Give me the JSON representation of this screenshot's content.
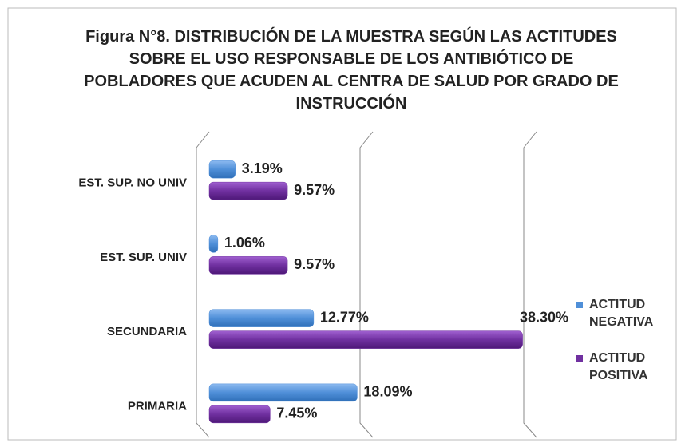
{
  "chart_data": {
    "type": "bar",
    "orientation": "horizontal",
    "title": "Figura N°8. DISTRIBUCIÓN DE LA MUESTRA SEGÚN LAS ACTITUDES SOBRE EL USO RESPONSABLE DE LOS ANTIBIÓTICO DE POBLADORES QUE ACUDEN AL CENTRA DE SALUD POR GRADO DE INSTRUCCIÓN",
    "categories": [
      "EST. SUP. NO UNIV",
      "EST. SUP. UNIV",
      "SECUNDARIA",
      "PRIMARIA"
    ],
    "series": [
      {
        "name": "ACTITUD NEGATIVA",
        "color": "#4f8fd8",
        "values": [
          3.19,
          1.06,
          12.77,
          18.09
        ],
        "value_labels": [
          "3.19%",
          "1.06%",
          "12.77%",
          "18.09%"
        ]
      },
      {
        "name": "ACTITUD POSITIVA",
        "color": "#7030a0",
        "values": [
          9.57,
          9.57,
          38.3,
          7.45
        ],
        "value_labels": [
          "9.57%",
          "9.57%",
          "38.30%",
          "7.45%"
        ]
      }
    ],
    "xlim": [
      0,
      40
    ],
    "xticks": [
      0,
      20,
      40
    ],
    "grid": true,
    "legend": "right"
  }
}
